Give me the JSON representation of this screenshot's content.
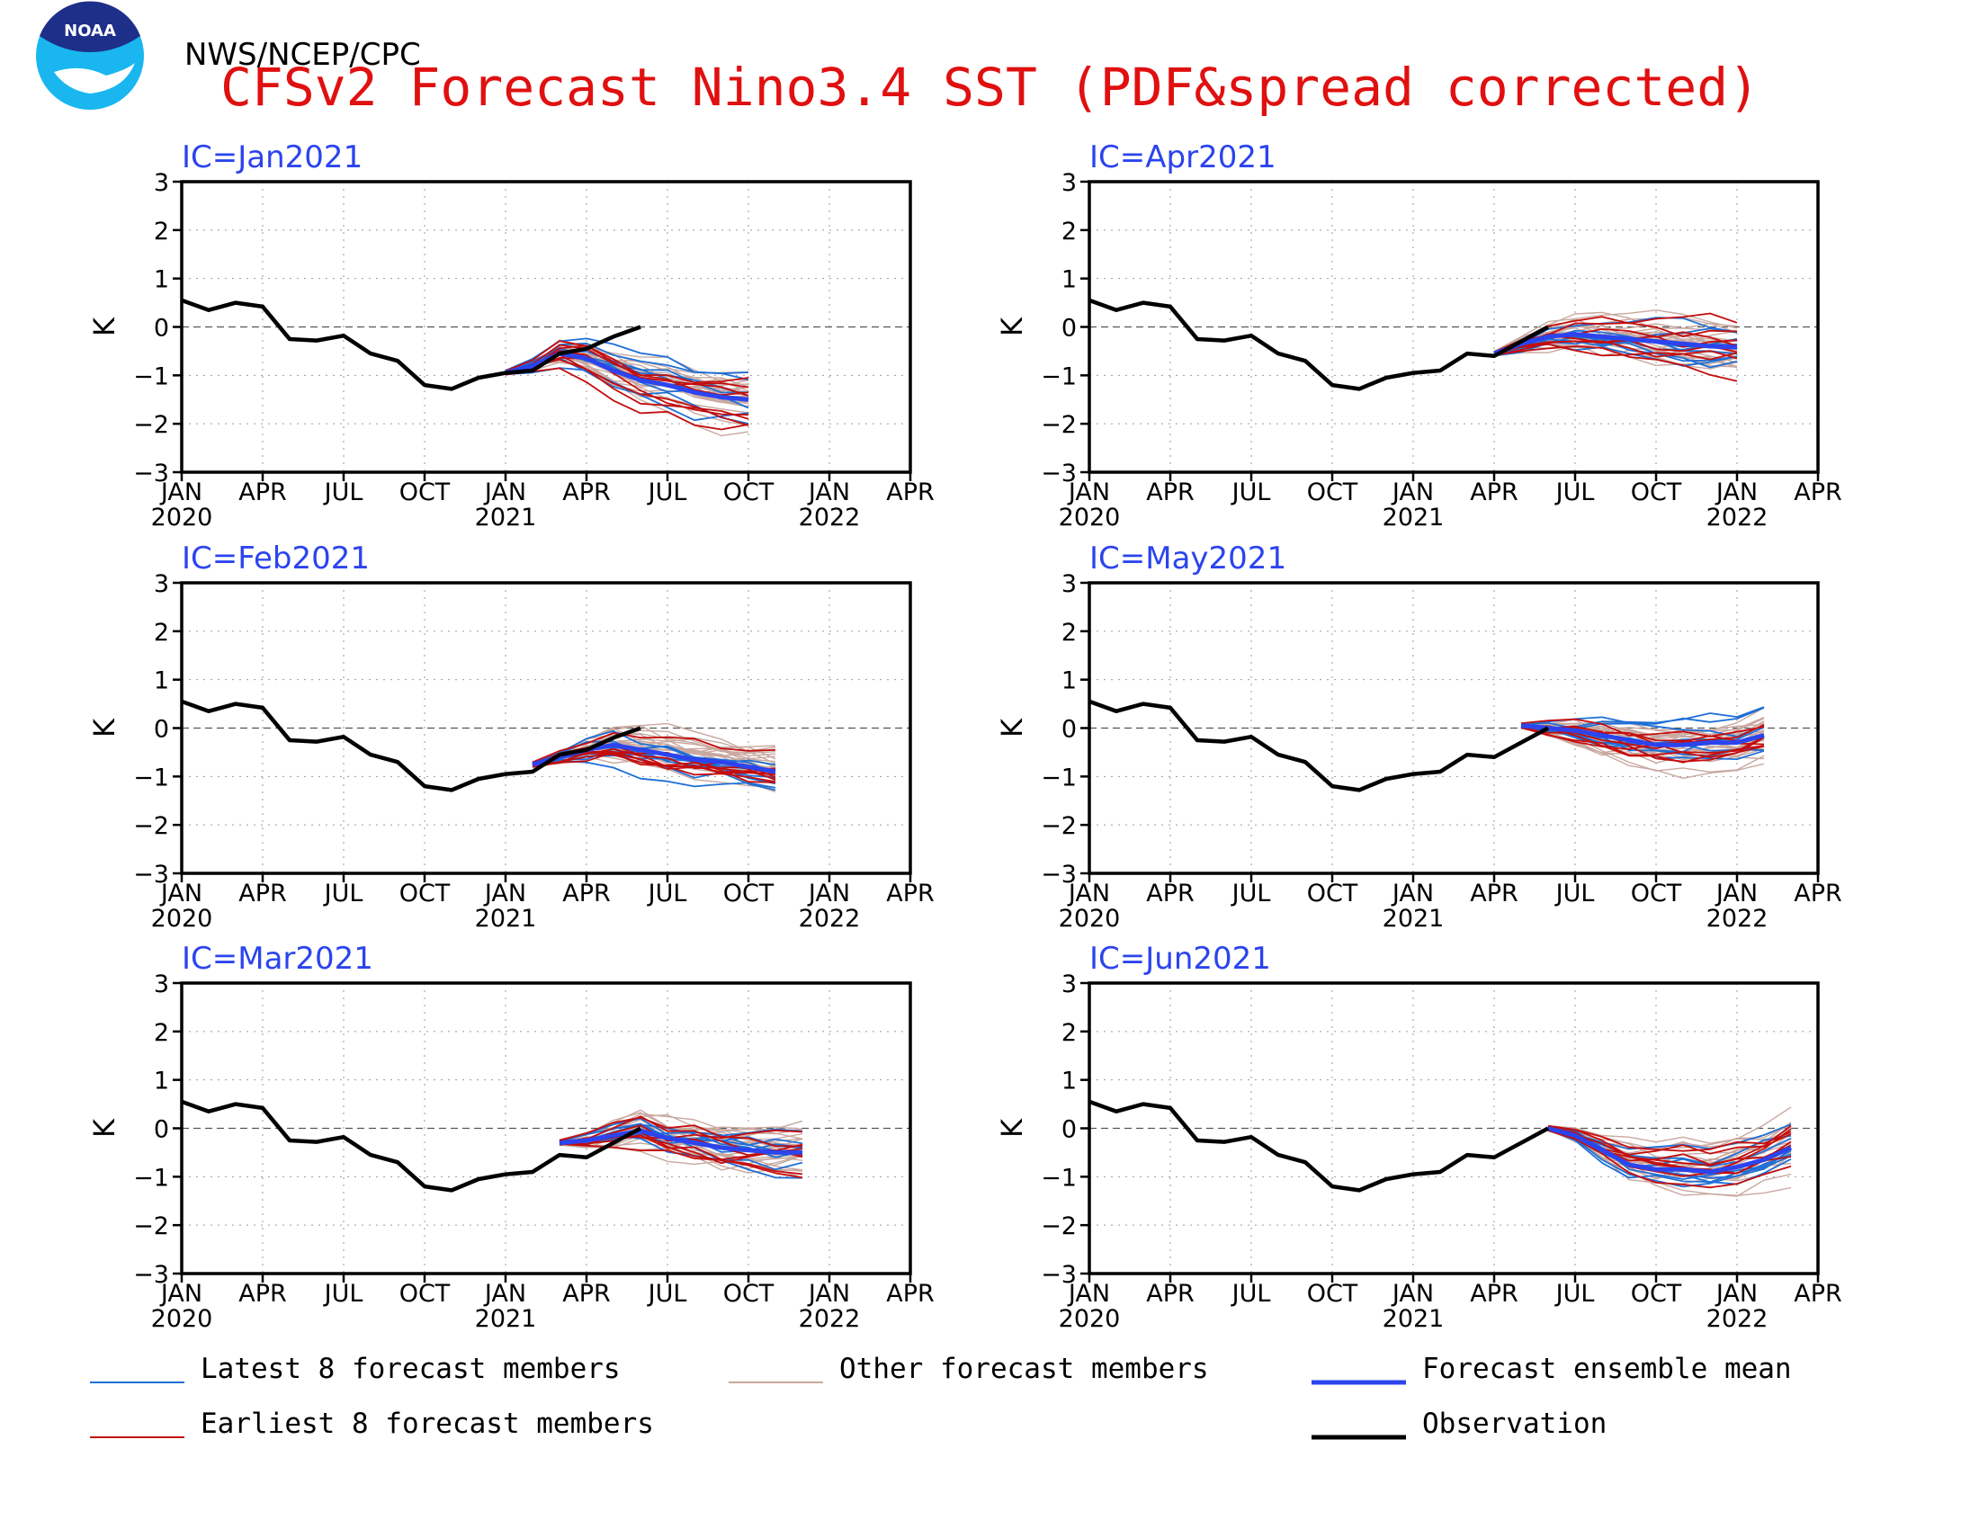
{
  "header": {
    "logo_text": "NOAA",
    "agency": "NWS/NCEP/CPC",
    "title": "CFSv2 Forecast Nino3.4 SST (PDF&spread corrected)"
  },
  "colors": {
    "latest": "#1f6fd6",
    "earliest": "#c40d0d",
    "other": "#c8a8a0",
    "mean": "#2b44ee",
    "observation": "#000000",
    "title": "#e01010",
    "panel_title": "#2b44ee",
    "logo_outer": "#19b6ef",
    "logo_inner": "#1e2f8a"
  },
  "axes": {
    "ylabel": "K",
    "yticks": [
      "3",
      "2",
      "1",
      "0",
      "−1",
      "−2",
      "−3"
    ],
    "ylim": [
      -3,
      3
    ],
    "xticks": [
      "JAN",
      "APR",
      "JUL",
      "OCT",
      "JAN",
      "APR",
      "JUL",
      "OCT",
      "JAN",
      "APR"
    ],
    "xyears": [
      "2020",
      "2021",
      "2022"
    ],
    "x_start": "2020-01",
    "x_end": "2022-04"
  },
  "legend": [
    {
      "key": "latest",
      "label": "Latest 8 forecast members"
    },
    {
      "key": "other",
      "label": "Other forecast members"
    },
    {
      "key": "mean",
      "label": "Forecast ensemble mean"
    },
    {
      "key": "earliest",
      "label": "Earliest 8 forecast members"
    },
    {
      "key": "observation",
      "label": "Observation"
    }
  ],
  "chart_data": [
    {
      "type": "line",
      "title": "IC=Jan2021",
      "ylabel": "K",
      "ylim": [
        -3,
        3
      ],
      "observation": {
        "start": "2020-01",
        "values": [
          0.55,
          0.35,
          0.5,
          0.42,
          -0.25,
          -0.28,
          -0.18,
          -0.55,
          -0.7,
          -1.2,
          -1.28,
          -1.05,
          -0.95,
          -0.9,
          -0.55,
          -0.45,
          -0.2,
          0.0
        ]
      },
      "ensemble_mean": {
        "start": "2021-01",
        "values": [
          -0.95,
          -0.8,
          -0.55,
          -0.65,
          -0.9,
          -1.1,
          -1.2,
          -1.35,
          -1.45,
          -1.5
        ]
      },
      "members": {
        "latest": 8,
        "earliest": 8,
        "other": 24,
        "end": "2021-10"
      }
    },
    {
      "type": "line",
      "title": "IC=Feb2021",
      "ylabel": "K",
      "ylim": [
        -3,
        3
      ],
      "observation": {
        "start": "2020-01",
        "values": [
          0.55,
          0.35,
          0.5,
          0.42,
          -0.25,
          -0.28,
          -0.18,
          -0.55,
          -0.7,
          -1.2,
          -1.28,
          -1.05,
          -0.95,
          -0.9,
          -0.55,
          -0.45,
          -0.2,
          0.0
        ]
      },
      "ensemble_mean": {
        "start": "2021-02",
        "values": [
          -0.75,
          -0.6,
          -0.45,
          -0.35,
          -0.45,
          -0.55,
          -0.65,
          -0.7,
          -0.8,
          -0.9
        ]
      },
      "members": {
        "latest": 8,
        "earliest": 8,
        "other": 24,
        "end": "2021-11"
      }
    },
    {
      "type": "line",
      "title": "IC=Mar2021",
      "ylabel": "K",
      "ylim": [
        -3,
        3
      ],
      "observation": {
        "start": "2020-01",
        "values": [
          0.55,
          0.35,
          0.5,
          0.42,
          -0.25,
          -0.28,
          -0.18,
          -0.55,
          -0.7,
          -1.2,
          -1.28,
          -1.05,
          -0.95,
          -0.9,
          -0.55,
          -0.6,
          -0.3,
          0.0
        ]
      },
      "ensemble_mean": {
        "start": "2021-03",
        "values": [
          -0.3,
          -0.25,
          -0.15,
          -0.05,
          -0.2,
          -0.3,
          -0.4,
          -0.45,
          -0.5,
          -0.5
        ]
      },
      "members": {
        "latest": 8,
        "earliest": 8,
        "other": 24,
        "end": "2021-12"
      }
    },
    {
      "type": "line",
      "title": "IC=Apr2021",
      "ylabel": "K",
      "ylim": [
        -3,
        3
      ],
      "observation": {
        "start": "2020-01",
        "values": [
          0.55,
          0.35,
          0.5,
          0.42,
          -0.25,
          -0.28,
          -0.18,
          -0.55,
          -0.7,
          -1.2,
          -1.28,
          -1.05,
          -0.95,
          -0.9,
          -0.55,
          -0.6,
          -0.3,
          0.0
        ]
      },
      "ensemble_mean": {
        "start": "2021-04",
        "values": [
          -0.55,
          -0.35,
          -0.2,
          -0.15,
          -0.2,
          -0.25,
          -0.3,
          -0.35,
          -0.4,
          -0.42
        ]
      },
      "members": {
        "latest": 8,
        "earliest": 8,
        "other": 24,
        "end": "2022-01"
      }
    },
    {
      "type": "line",
      "title": "IC=May2021",
      "ylabel": "K",
      "ylim": [
        -3,
        3
      ],
      "observation": {
        "start": "2020-01",
        "values": [
          0.55,
          0.35,
          0.5,
          0.42,
          -0.25,
          -0.28,
          -0.18,
          -0.55,
          -0.7,
          -1.2,
          -1.28,
          -1.05,
          -0.95,
          -0.9,
          -0.55,
          -0.6,
          -0.3,
          0.0
        ]
      },
      "ensemble_mean": {
        "start": "2021-05",
        "values": [
          0.05,
          0.0,
          -0.05,
          -0.15,
          -0.25,
          -0.35,
          -0.35,
          -0.3,
          -0.3,
          -0.15
        ]
      },
      "members": {
        "latest": 8,
        "earliest": 8,
        "other": 24,
        "end": "2022-02"
      }
    },
    {
      "type": "line",
      "title": "IC=Jun2021",
      "ylabel": "K",
      "ylim": [
        -3,
        3
      ],
      "observation": {
        "start": "2020-01",
        "values": [
          0.55,
          0.35,
          0.5,
          0.42,
          -0.25,
          -0.28,
          -0.18,
          -0.55,
          -0.7,
          -1.2,
          -1.28,
          -1.05,
          -0.95,
          -0.9,
          -0.55,
          -0.6,
          -0.3,
          0.0
        ]
      },
      "ensemble_mean": {
        "start": "2021-06",
        "values": [
          0.0,
          -0.15,
          -0.45,
          -0.75,
          -0.85,
          -0.85,
          -0.9,
          -0.8,
          -0.65,
          -0.4
        ]
      },
      "members": {
        "latest": 8,
        "earliest": 8,
        "other": 24,
        "end": "2022-03"
      }
    }
  ]
}
